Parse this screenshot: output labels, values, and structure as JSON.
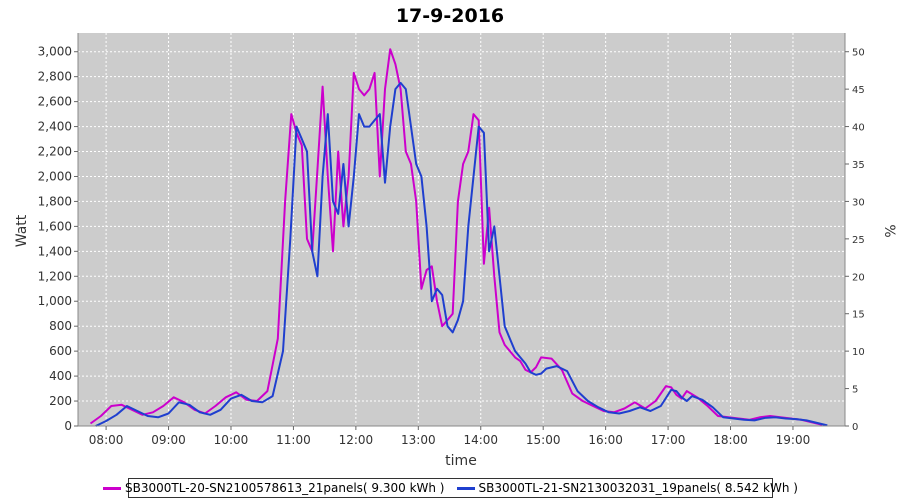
{
  "chart_data": {
    "type": "line",
    "title": "17-9-2016",
    "xlabel": "time",
    "ylabel": "Watt",
    "y2label": "%",
    "x_range": [
      "07:33",
      "19:50"
    ],
    "ylim": [
      0,
      3150
    ],
    "y2lim": [
      0,
      52.5
    ],
    "x_ticks": [
      "08:00",
      "09:00",
      "10:00",
      "11:00",
      "12:00",
      "13:00",
      "14:00",
      "15:00",
      "16:00",
      "17:00",
      "18:00",
      "19:00"
    ],
    "y_ticks": [
      "0",
      "200",
      "400",
      "600",
      "800",
      "1,000",
      "1,200",
      "1,400",
      "1,600",
      "1,800",
      "2,000",
      "2,200",
      "2,400",
      "2,600",
      "2,800",
      "3,000"
    ],
    "y_tick_values": [
      0,
      200,
      400,
      600,
      800,
      1000,
      1200,
      1400,
      1600,
      1800,
      2000,
      2200,
      2400,
      2600,
      2800,
      3000
    ],
    "y2_ticks": [
      "0",
      "5",
      "10",
      "15",
      "20",
      "25",
      "30",
      "35",
      "40",
      "45",
      "50"
    ],
    "y2_tick_values": [
      0,
      5,
      10,
      15,
      20,
      25,
      30,
      35,
      40,
      45,
      50
    ],
    "grid": true,
    "background": "#cccccc",
    "legend_position": "bottom",
    "series": [
      {
        "name": "SB3000TL-20-SN2100578613_21panels( 9.300 kWh )",
        "color": "#cc00cc",
        "x": [
          "07:45",
          "07:55",
          "08:05",
          "08:15",
          "08:25",
          "08:35",
          "08:45",
          "08:55",
          "09:05",
          "09:15",
          "09:25",
          "09:35",
          "09:45",
          "09:55",
          "10:05",
          "10:15",
          "10:25",
          "10:35",
          "10:45",
          "10:52",
          "10:58",
          "11:03",
          "11:08",
          "11:13",
          "11:18",
          "11:23",
          "11:28",
          "11:33",
          "11:38",
          "11:43",
          "11:48",
          "11:53",
          "11:58",
          "12:03",
          "12:08",
          "12:13",
          "12:18",
          "12:23",
          "12:28",
          "12:33",
          "12:38",
          "12:43",
          "12:48",
          "12:53",
          "12:58",
          "13:03",
          "13:08",
          "13:13",
          "13:18",
          "13:23",
          "13:28",
          "13:33",
          "13:38",
          "13:43",
          "13:48",
          "13:53",
          "13:58",
          "14:03",
          "14:08",
          "14:13",
          "14:18",
          "14:23",
          "14:28",
          "14:33",
          "14:38",
          "14:43",
          "14:48",
          "14:53",
          "14:58",
          "15:08",
          "15:18",
          "15:28",
          "15:38",
          "15:48",
          "15:58",
          "16:08",
          "16:18",
          "16:28",
          "16:38",
          "16:48",
          "16:58",
          "17:03",
          "17:08",
          "17:13",
          "17:18",
          "17:28",
          "17:38",
          "17:48",
          "17:58",
          "18:08",
          "18:18",
          "18:28",
          "18:38",
          "18:48",
          "18:58",
          "19:08",
          "19:18",
          "19:28"
        ],
        "y": [
          20,
          80,
          160,
          170,
          130,
          90,
          110,
          160,
          230,
          190,
          130,
          100,
          160,
          230,
          270,
          210,
          200,
          280,
          700,
          1800,
          2500,
          2350,
          2250,
          1500,
          1400,
          2050,
          2720,
          2000,
          1400,
          2200,
          1600,
          2000,
          2830,
          2700,
          2650,
          2700,
          2830,
          2000,
          2700,
          3020,
          2900,
          2700,
          2200,
          2100,
          1800,
          1100,
          1250,
          1280,
          1000,
          800,
          850,
          900,
          1800,
          2100,
          2200,
          2500,
          2450,
          1300,
          1750,
          1200,
          750,
          650,
          600,
          550,
          520,
          450,
          430,
          470,
          550,
          540,
          450,
          260,
          200,
          160,
          120,
          110,
          140,
          190,
          140,
          200,
          320,
          310,
          250,
          220,
          280,
          230,
          160,
          80,
          70,
          60,
          50,
          70,
          80,
          70,
          60,
          50,
          30,
          10
        ]
      },
      {
        "name": "SB3000TL-21-SN2130032031_19panels( 8.542 kWh )",
        "color": "#1f3fcf",
        "x": [
          "07:50",
          "08:00",
          "08:10",
          "08:20",
          "08:30",
          "08:40",
          "08:50",
          "09:00",
          "09:10",
          "09:20",
          "09:30",
          "09:40",
          "09:50",
          "10:00",
          "10:10",
          "10:20",
          "10:30",
          "10:40",
          "10:50",
          "10:57",
          "11:03",
          "11:08",
          "11:13",
          "11:18",
          "11:23",
          "11:28",
          "11:33",
          "11:38",
          "11:43",
          "11:48",
          "11:53",
          "11:58",
          "12:03",
          "12:08",
          "12:13",
          "12:18",
          "12:23",
          "12:28",
          "12:33",
          "12:38",
          "12:43",
          "12:48",
          "12:53",
          "12:58",
          "13:03",
          "13:08",
          "13:13",
          "13:18",
          "13:23",
          "13:28",
          "13:33",
          "13:38",
          "13:43",
          "13:48",
          "13:53",
          "13:58",
          "14:03",
          "14:08",
          "14:13",
          "14:18",
          "14:23",
          "14:28",
          "14:33",
          "14:38",
          "14:43",
          "14:48",
          "14:53",
          "14:58",
          "15:03",
          "15:13",
          "15:23",
          "15:33",
          "15:43",
          "15:53",
          "16:03",
          "16:13",
          "16:23",
          "16:33",
          "16:43",
          "16:53",
          "17:03",
          "17:08",
          "17:13",
          "17:18",
          "17:23",
          "17:33",
          "17:43",
          "17:53",
          "18:03",
          "18:13",
          "18:23",
          "18:33",
          "18:43",
          "18:53",
          "19:03",
          "19:13",
          "19:23",
          "19:33"
        ],
        "y": [
          0,
          40,
          90,
          160,
          120,
          80,
          70,
          100,
          190,
          170,
          110,
          90,
          130,
          220,
          250,
          200,
          190,
          240,
          600,
          1500,
          2400,
          2300,
          2200,
          1400,
          1200,
          2000,
          2500,
          1800,
          1700,
          2100,
          1600,
          2000,
          2500,
          2400,
          2400,
          2450,
          2500,
          1950,
          2400,
          2700,
          2750,
          2700,
          2400,
          2100,
          2000,
          1600,
          1000,
          1100,
          1050,
          800,
          750,
          850,
          1000,
          1600,
          2000,
          2400,
          2350,
          1400,
          1600,
          1200,
          800,
          700,
          600,
          550,
          500,
          430,
          410,
          420,
          460,
          480,
          440,
          280,
          200,
          150,
          110,
          100,
          120,
          150,
          120,
          160,
          290,
          280,
          230,
          200,
          240,
          210,
          150,
          70,
          60,
          50,
          45,
          65,
          70,
          60,
          55,
          45,
          25,
          5
        ]
      }
    ]
  }
}
